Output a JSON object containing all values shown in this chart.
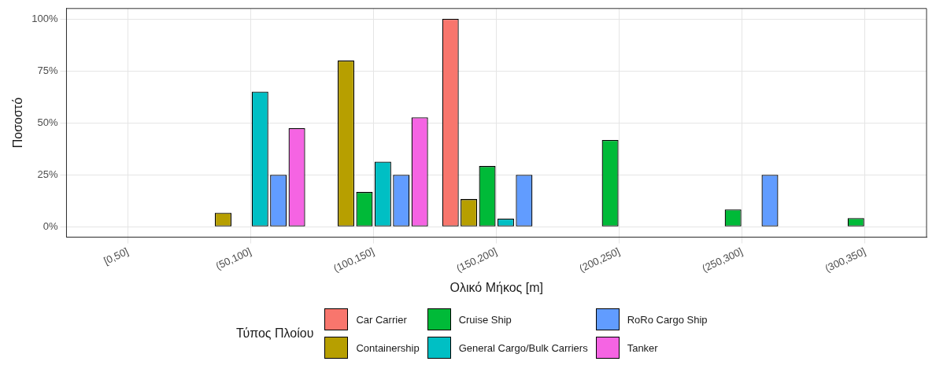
{
  "chart_data": {
    "type": "bar",
    "xlabel": "Ολικό Μήκος [m]",
    "ylabel": "Ποσοστό",
    "legend_title": "Τύπος Πλοίου",
    "legend": "bottom",
    "grid": true,
    "categories": [
      "[0,50]",
      "(50,100]",
      "(100,150]",
      "(150,200]",
      "(200,250]",
      "(250,300]",
      "(300,350]"
    ],
    "ylim": [
      -5,
      105
    ],
    "yticks": [
      {
        "value": 0,
        "label": "0%"
      },
      {
        "value": 25,
        "label": "25%"
      },
      {
        "value": 50,
        "label": "50%"
      },
      {
        "value": 75,
        "label": "75%"
      },
      {
        "value": 100,
        "label": "100%"
      }
    ],
    "series": [
      {
        "name": "Car Carrier",
        "color": "#f8766d",
        "values": [
          0,
          0,
          0,
          100,
          0,
          0,
          0
        ]
      },
      {
        "name": "Containership",
        "color": "#b79f00",
        "values": [
          0,
          6.7,
          80,
          13.3,
          0,
          0,
          0
        ]
      },
      {
        "name": "Cruise Ship",
        "color": "#00ba38",
        "values": [
          0,
          0,
          16.7,
          29.2,
          41.7,
          8.3,
          4.2
        ]
      },
      {
        "name": "General Cargo/Bulk Carriers",
        "color": "#00bfc4",
        "values": [
          0,
          65,
          31.3,
          3.9,
          0,
          0,
          0
        ]
      },
      {
        "name": "RoRo Cargo Ship",
        "color": "#619cff",
        "values": [
          0,
          25,
          25,
          25,
          0,
          25,
          0
        ]
      },
      {
        "name": "Tanker",
        "color": "#f564e3",
        "values": [
          0,
          47.4,
          52.6,
          0,
          0,
          0,
          0
        ]
      }
    ]
  }
}
